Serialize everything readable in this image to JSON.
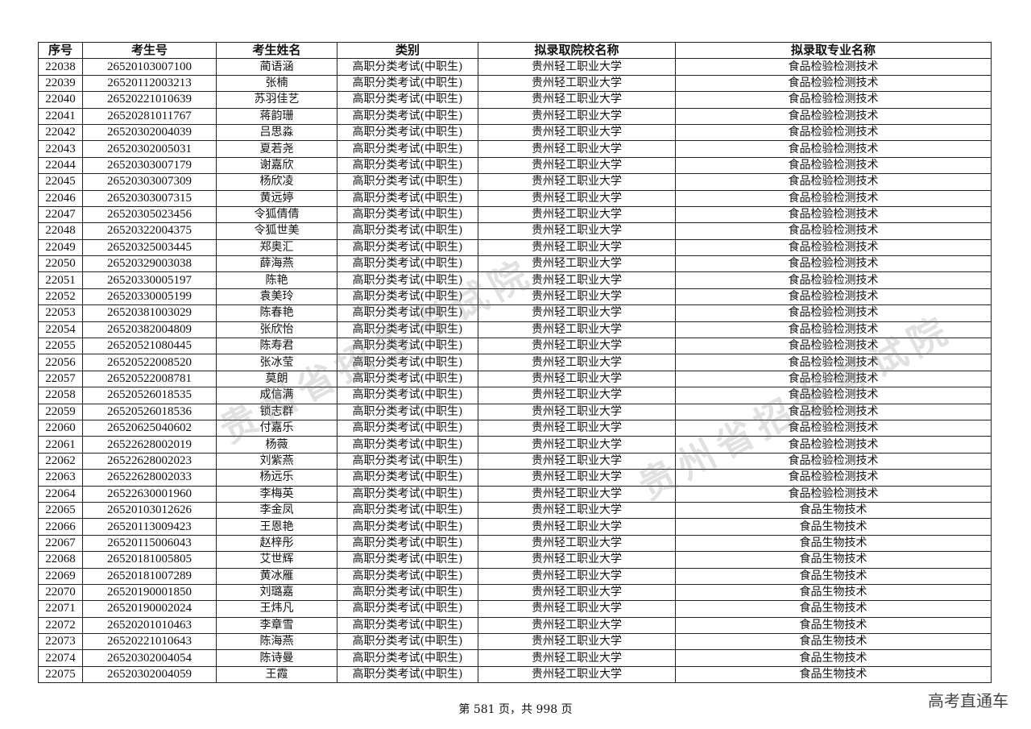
{
  "table": {
    "headers": [
      "序号",
      "考生号",
      "考生姓名",
      "类别",
      "拟录取院校名称",
      "拟录取专业名称"
    ],
    "rows": [
      [
        "22038",
        "26520103007100",
        "蔺语涵",
        "高职分类考试(中职生)",
        "贵州轻工职业大学",
        "食品检验检测技术"
      ],
      [
        "22039",
        "26520112003213",
        "张楠",
        "高职分类考试(中职生)",
        "贵州轻工职业大学",
        "食品检验检测技术"
      ],
      [
        "22040",
        "26520221010639",
        "苏羽佳艺",
        "高职分类考试(中职生)",
        "贵州轻工职业大学",
        "食品检验检测技术"
      ],
      [
        "22041",
        "26520281011767",
        "蒋韵珊",
        "高职分类考试(中职生)",
        "贵州轻工职业大学",
        "食品检验检测技术"
      ],
      [
        "22042",
        "26520302004039",
        "吕思淼",
        "高职分类考试(中职生)",
        "贵州轻工职业大学",
        "食品检验检测技术"
      ],
      [
        "22043",
        "26520302005031",
        "夏若尧",
        "高职分类考试(中职生)",
        "贵州轻工职业大学",
        "食品检验检测技术"
      ],
      [
        "22044",
        "26520303007179",
        "谢嘉欣",
        "高职分类考试(中职生)",
        "贵州轻工职业大学",
        "食品检验检测技术"
      ],
      [
        "22045",
        "26520303007309",
        "杨欣凌",
        "高职分类考试(中职生)",
        "贵州轻工职业大学",
        "食品检验检测技术"
      ],
      [
        "22046",
        "26520303007315",
        "黄远婷",
        "高职分类考试(中职生)",
        "贵州轻工职业大学",
        "食品检验检测技术"
      ],
      [
        "22047",
        "26520305023456",
        "令狐倩倩",
        "高职分类考试(中职生)",
        "贵州轻工职业大学",
        "食品检验检测技术"
      ],
      [
        "22048",
        "26520322004375",
        "令狐世美",
        "高职分类考试(中职生)",
        "贵州轻工职业大学",
        "食品检验检测技术"
      ],
      [
        "22049",
        "26520325003445",
        "郑奥汇",
        "高职分类考试(中职生)",
        "贵州轻工职业大学",
        "食品检验检测技术"
      ],
      [
        "22050",
        "26520329003038",
        "薛海燕",
        "高职分类考试(中职生)",
        "贵州轻工职业大学",
        "食品检验检测技术"
      ],
      [
        "22051",
        "26520330005197",
        "陈艳",
        "高职分类考试(中职生)",
        "贵州轻工职业大学",
        "食品检验检测技术"
      ],
      [
        "22052",
        "26520330005199",
        "袁美玲",
        "高职分类考试(中职生)",
        "贵州轻工职业大学",
        "食品检验检测技术"
      ],
      [
        "22053",
        "26520381003029",
        "陈春艳",
        "高职分类考试(中职生)",
        "贵州轻工职业大学",
        "食品检验检测技术"
      ],
      [
        "22054",
        "26520382004809",
        "张欣怡",
        "高职分类考试(中职生)",
        "贵州轻工职业大学",
        "食品检验检测技术"
      ],
      [
        "22055",
        "26520521080445",
        "陈寿君",
        "高职分类考试(中职生)",
        "贵州轻工职业大学",
        "食品检验检测技术"
      ],
      [
        "22056",
        "26520522008520",
        "张冰莹",
        "高职分类考试(中职生)",
        "贵州轻工职业大学",
        "食品检验检测技术"
      ],
      [
        "22057",
        "26520522008781",
        "莫朗",
        "高职分类考试(中职生)",
        "贵州轻工职业大学",
        "食品检验检测技术"
      ],
      [
        "22058",
        "26520526018535",
        "成信满",
        "高职分类考试(中职生)",
        "贵州轻工职业大学",
        "食品检验检测技术"
      ],
      [
        "22059",
        "26520526018536",
        "锁志群",
        "高职分类考试(中职生)",
        "贵州轻工职业大学",
        "食品检验检测技术"
      ],
      [
        "22060",
        "26520625040602",
        "付嘉乐",
        "高职分类考试(中职生)",
        "贵州轻工职业大学",
        "食品检验检测技术"
      ],
      [
        "22061",
        "26522628002019",
        "杨薇",
        "高职分类考试(中职生)",
        "贵州轻工职业大学",
        "食品检验检测技术"
      ],
      [
        "22062",
        "26522628002023",
        "刘紫燕",
        "高职分类考试(中职生)",
        "贵州轻工职业大学",
        "食品检验检测技术"
      ],
      [
        "22063",
        "26522628002033",
        "杨远乐",
        "高职分类考试(中职生)",
        "贵州轻工职业大学",
        "食品检验检测技术"
      ],
      [
        "22064",
        "26522630001960",
        "李梅英",
        "高职分类考试(中职生)",
        "贵州轻工职业大学",
        "食品检验检测技术"
      ],
      [
        "22065",
        "26520103012626",
        "李金凤",
        "高职分类考试(中职生)",
        "贵州轻工职业大学",
        "食品生物技术"
      ],
      [
        "22066",
        "26520113009423",
        "王恩艳",
        "高职分类考试(中职生)",
        "贵州轻工职业大学",
        "食品生物技术"
      ],
      [
        "22067",
        "26520115006043",
        "赵梓彤",
        "高职分类考试(中职生)",
        "贵州轻工职业大学",
        "食品生物技术"
      ],
      [
        "22068",
        "26520181005805",
        "艾世辉",
        "高职分类考试(中职生)",
        "贵州轻工职业大学",
        "食品生物技术"
      ],
      [
        "22069",
        "26520181007289",
        "黄冰雁",
        "高职分类考试(中职生)",
        "贵州轻工职业大学",
        "食品生物技术"
      ],
      [
        "22070",
        "26520190001850",
        "刘璐嘉",
        "高职分类考试(中职生)",
        "贵州轻工职业大学",
        "食品生物技术"
      ],
      [
        "22071",
        "26520190002024",
        "王炜凡",
        "高职分类考试(中职生)",
        "贵州轻工职业大学",
        "食品生物技术"
      ],
      [
        "22072",
        "26520201010463",
        "李章雪",
        "高职分类考试(中职生)",
        "贵州轻工职业大学",
        "食品生物技术"
      ],
      [
        "22073",
        "26520221010643",
        "陈海燕",
        "高职分类考试(中职生)",
        "贵州轻工职业大学",
        "食品生物技术"
      ],
      [
        "22074",
        "26520302004054",
        "陈诗曼",
        "高职分类考试(中职生)",
        "贵州轻工职业大学",
        "食品生物技术"
      ],
      [
        "22075",
        "26520302004059",
        "王霞",
        "高职分类考试(中职生)",
        "贵州轻工职业大学",
        "食品生物技术"
      ]
    ]
  },
  "footer": {
    "page_text": "第 581 页，共 998 页"
  },
  "watermark": {
    "text": "贵州省招生考试院"
  },
  "brand": {
    "text": "高考直通车"
  }
}
